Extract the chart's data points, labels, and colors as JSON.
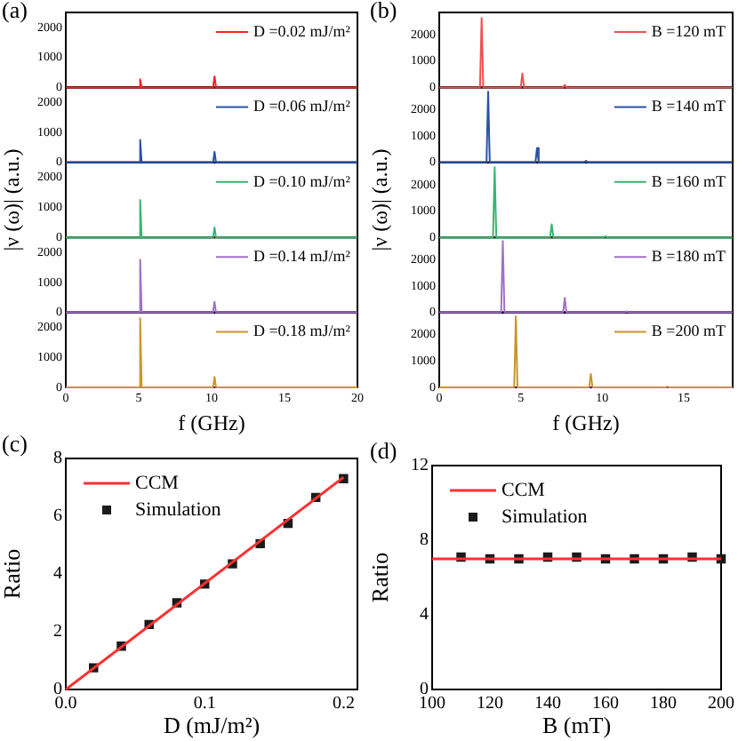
{
  "chart_data": [
    {
      "type": "line",
      "annotations": [
        "(a)"
      ],
      "x": [
        0,
        5.0,
        5.1,
        5.2,
        10.1,
        10.2,
        10.3,
        20
      ],
      "series": [
        {
          "name": "D =0.02 mJ/m²",
          "color": "#ff2020",
          "values": [
            0,
            0,
            270,
            0,
            0,
            370,
            0,
            0
          ]
        }
      ],
      "xlim": [
        0,
        20
      ],
      "xticks": [
        0,
        5,
        10,
        15,
        20
      ],
      "ylim": [
        0,
        2500
      ],
      "yticks": [
        0,
        1000,
        2000
      ],
      "tick_labels": "y",
      "legend": "top right",
      "marker": "none"
    },
    {
      "type": "line",
      "x": [
        0,
        5.0,
        5.1,
        5.2,
        10.1,
        10.2,
        10.3,
        20
      ],
      "series": [
        {
          "name": "D =0.06 mJ/m²",
          "color": "#2a52a6",
          "values": [
            0,
            0,
            750,
            0,
            0,
            350,
            0,
            0
          ]
        }
      ],
      "xlim": [
        0,
        20
      ],
      "xticks": [
        0,
        5,
        10,
        15,
        20
      ],
      "ylim": [
        0,
        2500
      ],
      "yticks": [
        0,
        1000,
        2000
      ],
      "tick_labels": "y",
      "legend": "top right",
      "marker": "none"
    },
    {
      "type": "line",
      "ylabel": "|ν (ω)| (a.u.)",
      "x": [
        0,
        5.0,
        5.1,
        5.2,
        10.1,
        10.2,
        10.3,
        20
      ],
      "series": [
        {
          "name": "D =0.10 mJ/m²",
          "color": "#3cb371",
          "values": [
            0,
            0,
            1250,
            0,
            0,
            330,
            0,
            0
          ]
        }
      ],
      "xlim": [
        0,
        20
      ],
      "xticks": [
        0,
        5,
        10,
        15,
        20
      ],
      "ylim": [
        0,
        2500
      ],
      "yticks": [
        0,
        1000,
        2000
      ],
      "tick_labels": "y",
      "legend": "top right",
      "marker": "none"
    },
    {
      "type": "line",
      "x": [
        0,
        5.0,
        5.1,
        5.2,
        10.1,
        10.2,
        10.3,
        20
      ],
      "series": [
        {
          "name": "D =0.14 mJ/m²",
          "color": "#a070c8",
          "values": [
            0,
            0,
            1760,
            0,
            0,
            350,
            0,
            0
          ]
        }
      ],
      "xlim": [
        0,
        20
      ],
      "xticks": [
        0,
        5,
        10,
        15,
        20
      ],
      "ylim": [
        0,
        2500
      ],
      "yticks": [
        0,
        1000,
        2000
      ],
      "tick_labels": "y",
      "legend": "top right",
      "marker": "none"
    },
    {
      "type": "line",
      "xlabel": "f (GHz)",
      "x": [
        0,
        5.0,
        5.1,
        5.2,
        10.1,
        10.2,
        10.3,
        20
      ],
      "series": [
        {
          "name": "D =0.18 mJ/m²",
          "color": "#c8962a",
          "values": [
            0,
            0,
            2300,
            0,
            0,
            350,
            0,
            0
          ]
        }
      ],
      "xlim": [
        0,
        20
      ],
      "xticks": [
        0,
        5,
        10,
        15,
        20
      ],
      "ylim": [
        0,
        2500
      ],
      "yticks": [
        0,
        1000,
        2000
      ],
      "legend": "top right",
      "marker": "none"
    },
    {
      "type": "line",
      "annotations": [
        "(b)"
      ],
      "x": [
        0,
        2.5,
        2.6,
        2.7,
        5.0,
        5.1,
        5.2,
        7.6,
        7.7,
        7.8,
        18
      ],
      "series": [
        {
          "name": "B =120 mT",
          "color": "#f05050",
          "values": [
            0,
            0,
            2640,
            0,
            0,
            530,
            0,
            0,
            100,
            0,
            0
          ]
        }
      ],
      "xlim": [
        0,
        18
      ],
      "xticks": [
        0,
        5,
        10,
        15
      ],
      "ylim": [
        0,
        2850
      ],
      "yticks": [
        0,
        1000,
        2000
      ],
      "tick_labels": "y",
      "legend": "top right",
      "marker": "none"
    },
    {
      "type": "line",
      "x": [
        0,
        2.9,
        3.0,
        3.1,
        5.9,
        6.0,
        6.1,
        8.9,
        9.0,
        9.1,
        18
      ],
      "series": [
        {
          "name": "B =140 mT",
          "color": "#2a52a6",
          "values": [
            0,
            0,
            2690,
            0,
            0,
            550,
            0,
            0,
            60,
            0,
            0
          ]
        }
      ],
      "xlim": [
        0,
        18
      ],
      "xticks": [
        0,
        5,
        10,
        15
      ],
      "ylim": [
        0,
        2850
      ],
      "yticks": [
        0,
        1000,
        2000
      ],
      "tick_labels": "y",
      "legend": "top right",
      "marker": "none"
    },
    {
      "type": "line",
      "ylabel": "|ν (ω)| (a.u.)",
      "x": [
        0,
        3.3,
        3.4,
        3.5,
        6.8,
        6.9,
        7.0,
        10.1,
        10.2,
        10.3,
        18
      ],
      "series": [
        {
          "name": "B =160 mT",
          "color": "#3cb371",
          "values": [
            0,
            0,
            2670,
            0,
            0,
            500,
            0,
            0,
            50,
            0,
            0
          ]
        }
      ],
      "xlim": [
        0,
        18
      ],
      "xticks": [
        0,
        5,
        10,
        15
      ],
      "ylim": [
        0,
        2850
      ],
      "yticks": [
        0,
        1000,
        2000
      ],
      "tick_labels": "y",
      "legend": "top right",
      "marker": "none"
    },
    {
      "type": "line",
      "x": [
        0,
        3.8,
        3.9,
        4.0,
        7.6,
        7.7,
        7.8,
        11.4,
        11.5,
        11.6,
        18
      ],
      "series": [
        {
          "name": "B =180 mT",
          "color": "#a070c8",
          "values": [
            0,
            0,
            2710,
            0,
            0,
            550,
            0,
            0,
            40,
            0,
            0
          ]
        }
      ],
      "xlim": [
        0,
        18
      ],
      "xticks": [
        0,
        5,
        10,
        15
      ],
      "ylim": [
        0,
        2850
      ],
      "yticks": [
        0,
        1000,
        2000
      ],
      "tick_labels": "y",
      "legend": "top right",
      "marker": "none"
    },
    {
      "type": "line",
      "xlabel": "f (GHz)",
      "x": [
        0,
        4.6,
        4.7,
        4.8,
        9.2,
        9.3,
        9.4,
        13.9,
        14.0,
        14.1,
        18
      ],
      "series": [
        {
          "name": "B =200 mT",
          "color": "#c8962a",
          "values": [
            0,
            0,
            2700,
            0,
            0,
            510,
            0,
            0,
            30,
            0,
            0
          ]
        }
      ],
      "xlim": [
        0,
        18
      ],
      "xticks": [
        0,
        5,
        10,
        15
      ],
      "ylim": [
        0,
        2850
      ],
      "yticks": [
        0,
        1000,
        2000
      ],
      "legend": "top right",
      "marker": "none"
    },
    {
      "type": "scatter",
      "annotations": [
        "(c)"
      ],
      "xlabel": "D (mJ/m²)",
      "ylabel": "Ratio",
      "x": [
        0.02,
        0.04,
        0.06,
        0.08,
        0.1,
        0.12,
        0.14,
        0.16,
        0.18,
        0.2
      ],
      "series": [
        {
          "name": "CCM",
          "type": "line",
          "color": "#ff3030",
          "x": [
            0,
            0.2
          ],
          "values": [
            0,
            7.35
          ],
          "marker": "none"
        },
        {
          "name": "Simulation",
          "color": "#1a1a1a",
          "values": [
            0.75,
            1.5,
            2.25,
            3.0,
            3.65,
            4.35,
            5.05,
            5.75,
            6.65,
            7.3
          ],
          "marker": "square"
        }
      ],
      "xlim": [
        0,
        0.21
      ],
      "xticks": [
        {
          "value": 0,
          "label": "0.0"
        },
        0.1,
        0.2
      ],
      "ylim": [
        0,
        8
      ],
      "yticks": [
        0,
        2,
        4,
        6,
        8
      ],
      "legend": "top left"
    },
    {
      "type": "scatter",
      "annotations": [
        "(d)"
      ],
      "xlabel": "B (mT)",
      "ylabel": "Ratio",
      "x": [
        110,
        120,
        130,
        140,
        150,
        160,
        170,
        180,
        190,
        200
      ],
      "series": [
        {
          "name": "CCM",
          "type": "line",
          "color": "#ff3030",
          "x": [
            100,
            200
          ],
          "values": [
            7.0,
            7.0
          ],
          "marker": "none"
        },
        {
          "name": "Simulation",
          "color": "#1a1a1a",
          "values": [
            7.1,
            7.0,
            7.0,
            7.1,
            7.1,
            7.0,
            7.0,
            7.0,
            7.1,
            7.0
          ],
          "marker": "square"
        }
      ],
      "xlim": [
        100,
        200
      ],
      "xticks": [
        100,
        120,
        140,
        160,
        180,
        200
      ],
      "ylim": [
        0,
        12
      ],
      "yticks": [
        0,
        4,
        8,
        12
      ],
      "legend": "top left"
    }
  ]
}
